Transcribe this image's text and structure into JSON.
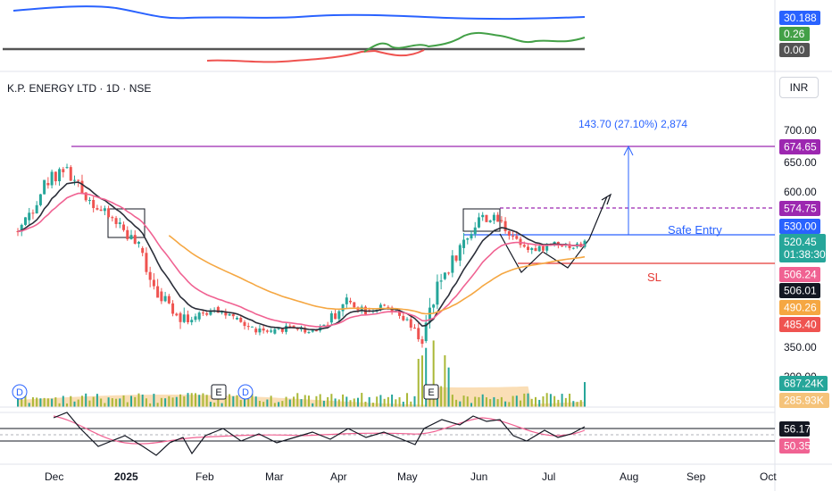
{
  "title": "K.P. ENERGY LTD · 1D · NSE",
  "currency": "INR",
  "annotations": {
    "target_label": "143.70 (27.10%) 2,874",
    "entry_label": "Safe Entry",
    "sl_label": "SL"
  },
  "colors": {
    "up": "#26a69a",
    "down": "#ef5350",
    "ema_fast": "#2a2e39",
    "ema_mid": "#f06292",
    "ema_slow": "#f5a742",
    "resistance": "#9c27b0",
    "entry": "#2962ff",
    "sl": "#e53935",
    "volume_up": "#aab836",
    "volume_ma": "#f5c37a"
  },
  "top_panel": {
    "badges": [
      {
        "value": "30.188",
        "color": "#2962ff"
      },
      {
        "value": "0.26",
        "color": "#43a047"
      },
      {
        "value": "0.00",
        "color": "#545454"
      }
    ]
  },
  "price_axis": {
    "ticks": [
      "700.00",
      "650.00",
      "600.00",
      "350.00",
      "300.00"
    ],
    "badges": [
      {
        "value": "674.65",
        "color": "#9c27b0"
      },
      {
        "value": "574.75",
        "color": "#9c27b0"
      },
      {
        "value": "530.00",
        "color": "#2962ff"
      },
      {
        "value": "520.45",
        "color": "#26a69a",
        "sub": "01:38:30"
      },
      {
        "value": "506.24",
        "color": "#f06292"
      },
      {
        "value": "506.01",
        "color": "#131722"
      },
      {
        "value": "490.26",
        "color": "#f5a742"
      },
      {
        "value": "485.40",
        "color": "#ef5350"
      }
    ]
  },
  "volume": {
    "badges": [
      {
        "value": "687.24K",
        "color": "#26a69a"
      },
      {
        "value": "285.93K",
        "color": "#f5c37a"
      }
    ],
    "markers": [
      "D",
      "E",
      "D",
      "E"
    ]
  },
  "oscillator": {
    "badges": [
      {
        "value": "56.17",
        "color": "#131722"
      },
      {
        "value": "50.35",
        "color": "#f06292"
      }
    ]
  },
  "time_axis": [
    "Dec",
    "2025",
    "Feb",
    "Mar",
    "Apr",
    "May",
    "Jun",
    "Jul",
    "Aug",
    "Sep",
    "Oct"
  ],
  "chart_data": {
    "type": "candlestick",
    "title": "K.P. ENERGY LTD · 1D · NSE",
    "x_range": [
      "Dec",
      "Oct"
    ],
    "y_range": [
      300,
      720
    ],
    "levels": {
      "resistance": 674.65,
      "breakout_dashed": 574.75,
      "safe_entry": 530.0,
      "stop_loss": 485.4,
      "target_move": 143.7,
      "target_pct": 27.1
    },
    "last_price": 520.45,
    "ema_values": {
      "fast": 506.01,
      "mid": 506.24,
      "slow": 490.26
    },
    "candles_weekly_approx": [
      {
        "t": "Nov-W4",
        "o": 520,
        "h": 560,
        "l": 505,
        "c": 555
      },
      {
        "t": "Dec-W1",
        "o": 555,
        "h": 620,
        "l": 545,
        "c": 615
      },
      {
        "t": "Dec-W2",
        "o": 615,
        "h": 675,
        "l": 600,
        "c": 640
      },
      {
        "t": "Dec-W3",
        "o": 640,
        "h": 660,
        "l": 590,
        "c": 600
      },
      {
        "t": "Dec-W4",
        "o": 600,
        "h": 610,
        "l": 560,
        "c": 570
      },
      {
        "t": "Jan-W1",
        "o": 570,
        "h": 590,
        "l": 540,
        "c": 548
      },
      {
        "t": "Jan-W2",
        "o": 548,
        "h": 560,
        "l": 500,
        "c": 510
      },
      {
        "t": "Jan-W3",
        "o": 510,
        "h": 520,
        "l": 430,
        "c": 440
      },
      {
        "t": "Jan-W4",
        "o": 440,
        "h": 450,
        "l": 400,
        "c": 405
      },
      {
        "t": "Feb-W1",
        "o": 405,
        "h": 420,
        "l": 345,
        "c": 395
      },
      {
        "t": "Feb-W2",
        "o": 395,
        "h": 430,
        "l": 380,
        "c": 415
      },
      {
        "t": "Feb-W3",
        "o": 415,
        "h": 425,
        "l": 385,
        "c": 395
      },
      {
        "t": "Feb-W4",
        "o": 395,
        "h": 410,
        "l": 370,
        "c": 380
      },
      {
        "t": "Mar-W1",
        "o": 380,
        "h": 400,
        "l": 362,
        "c": 372
      },
      {
        "t": "Mar-W2",
        "o": 372,
        "h": 390,
        "l": 360,
        "c": 385
      },
      {
        "t": "Mar-W3",
        "o": 385,
        "h": 395,
        "l": 365,
        "c": 375
      },
      {
        "t": "Mar-W4",
        "o": 375,
        "h": 395,
        "l": 362,
        "c": 390
      },
      {
        "t": "Apr-W1",
        "o": 390,
        "h": 445,
        "l": 385,
        "c": 425
      },
      {
        "t": "Apr-W2",
        "o": 425,
        "h": 440,
        "l": 400,
        "c": 410
      },
      {
        "t": "Apr-W3",
        "o": 410,
        "h": 425,
        "l": 395,
        "c": 415
      },
      {
        "t": "Apr-W4",
        "o": 415,
        "h": 420,
        "l": 385,
        "c": 395
      },
      {
        "t": "May-W1",
        "o": 395,
        "h": 400,
        "l": 345,
        "c": 360
      },
      {
        "t": "May-W2",
        "o": 360,
        "h": 470,
        "l": 355,
        "c": 460
      },
      {
        "t": "May-W3",
        "o": 460,
        "h": 520,
        "l": 450,
        "c": 510
      },
      {
        "t": "May-W4",
        "o": 510,
        "h": 580,
        "l": 500,
        "c": 560
      },
      {
        "t": "Jun-W1",
        "o": 560,
        "h": 585,
        "l": 540,
        "c": 555
      },
      {
        "t": "Jun-W2",
        "o": 555,
        "h": 575,
        "l": 520,
        "c": 525
      },
      {
        "t": "Jun-W3",
        "o": 525,
        "h": 535,
        "l": 488,
        "c": 505
      },
      {
        "t": "Jun-W4",
        "o": 505,
        "h": 530,
        "l": 498,
        "c": 520
      },
      {
        "t": "Jul-W1",
        "o": 520,
        "h": 530,
        "l": 500,
        "c": 512
      },
      {
        "t": "Jul-W2",
        "o": 512,
        "h": 532,
        "l": 492,
        "c": 520
      }
    ]
  }
}
